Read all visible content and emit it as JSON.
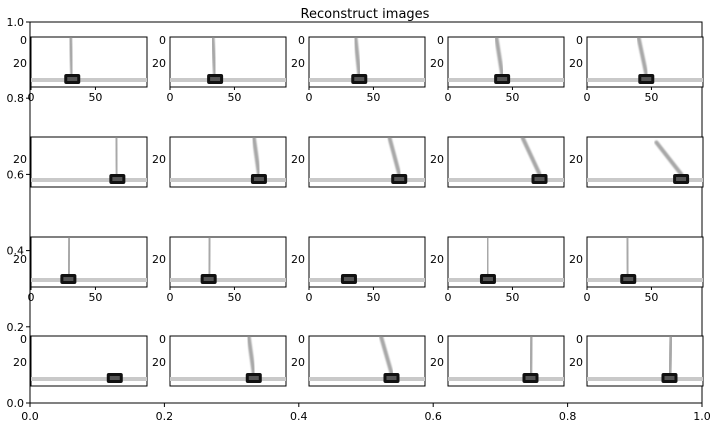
{
  "chart_data": {
    "type": "image-grid",
    "title": "Reconstruct images",
    "background_axes": {
      "x_ticks": [
        "0.0",
        "0.2",
        "0.4",
        "0.6",
        "0.8",
        "1.0"
      ],
      "y_ticks": [
        "0.0",
        "0.2",
        "0.4",
        "0.6",
        "0.8",
        "1.0"
      ],
      "xlim": [
        0,
        1
      ],
      "ylim": [
        0,
        1
      ]
    },
    "grid": {
      "rows": 4,
      "cols": 5
    },
    "row_y_ticks": [
      [
        "0",
        "20"
      ],
      [
        "20"
      ],
      [
        "20"
      ],
      [
        "0",
        "20"
      ]
    ],
    "subplot_x_ticks": [
      "0",
      "50"
    ],
    "rows": [
      {
        "show_x_ticks": true,
        "panels": [
          {
            "cart_x": 32,
            "pole_angle_deg": -3
          },
          {
            "cart_x": 35,
            "pole_angle_deg": -4
          },
          {
            "cart_x": 39,
            "pole_angle_deg": -6
          },
          {
            "cart_x": 42,
            "pole_angle_deg": -9
          },
          {
            "cart_x": 46,
            "pole_angle_deg": -12
          }
        ]
      },
      {
        "show_x_ticks": false,
        "panels": [
          {
            "cart_x": 67,
            "pole_angle_deg": -2
          },
          {
            "cart_x": 69,
            "pole_angle_deg": -8
          },
          {
            "cart_x": 70,
            "pole_angle_deg": -15
          },
          {
            "cart_x": 71,
            "pole_angle_deg": -25
          },
          {
            "cart_x": 73,
            "pole_angle_deg": -38
          }
        ]
      },
      {
        "show_x_ticks": true,
        "panels": [
          {
            "cart_x": 29,
            "pole_angle_deg": 2
          },
          {
            "cart_x": 30,
            "pole_angle_deg": 2
          },
          {
            "cart_x": 31,
            "pole_angle_deg": 0
          },
          {
            "cart_x": 31,
            "pole_angle_deg": -1
          },
          {
            "cart_x": 32,
            "pole_angle_deg": -2
          }
        ]
      },
      {
        "show_x_ticks": false,
        "panels": [
          {
            "cart_x": 65,
            "pole_angle_deg": 0
          },
          {
            "cart_x": 65,
            "pole_angle_deg": -8
          },
          {
            "cart_x": 64,
            "pole_angle_deg": -16
          },
          {
            "cart_x": 64,
            "pole_angle_deg": 2
          },
          {
            "cart_x": 64,
            "pole_angle_deg": 3
          }
        ]
      }
    ]
  }
}
